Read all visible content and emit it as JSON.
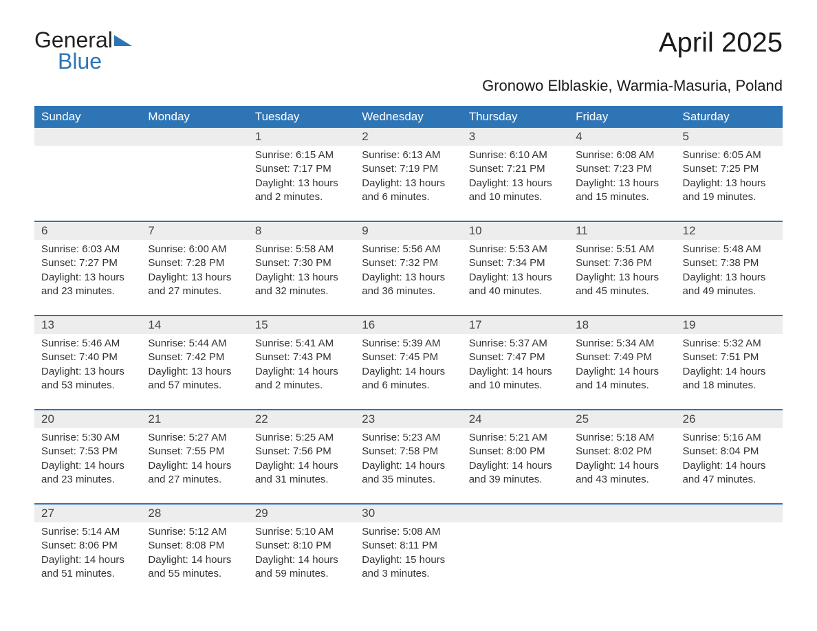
{
  "logo": {
    "word1": "General",
    "word2": "Blue"
  },
  "title": "April 2025",
  "subtitle": "Gronowo Elblaskie, Warmia-Masuria, Poland",
  "colors": {
    "header_bg": "#2e75b6",
    "header_text": "#ffffff",
    "daynum_bg": "#ededed",
    "row_border": "#2e75b6",
    "body_text": "#333333",
    "page_bg": "#ffffff",
    "logo_blue": "#2e75b6"
  },
  "typography": {
    "title_fontsize": 40,
    "subtitle_fontsize": 22,
    "header_fontsize": 17,
    "daynum_fontsize": 17,
    "cell_fontsize": 15
  },
  "layout": {
    "columns": 7,
    "weeks": 5,
    "cell_padding_bottom": 24
  },
  "weekdays": [
    "Sunday",
    "Monday",
    "Tuesday",
    "Wednesday",
    "Thursday",
    "Friday",
    "Saturday"
  ],
  "grid": [
    [
      {
        "day": "",
        "sunrise": "",
        "sunset": "",
        "daylight1": "",
        "daylight2": ""
      },
      {
        "day": "",
        "sunrise": "",
        "sunset": "",
        "daylight1": "",
        "daylight2": ""
      },
      {
        "day": "1",
        "sunrise": "Sunrise: 6:15 AM",
        "sunset": "Sunset: 7:17 PM",
        "daylight1": "Daylight: 13 hours",
        "daylight2": "and 2 minutes."
      },
      {
        "day": "2",
        "sunrise": "Sunrise: 6:13 AM",
        "sunset": "Sunset: 7:19 PM",
        "daylight1": "Daylight: 13 hours",
        "daylight2": "and 6 minutes."
      },
      {
        "day": "3",
        "sunrise": "Sunrise: 6:10 AM",
        "sunset": "Sunset: 7:21 PM",
        "daylight1": "Daylight: 13 hours",
        "daylight2": "and 10 minutes."
      },
      {
        "day": "4",
        "sunrise": "Sunrise: 6:08 AM",
        "sunset": "Sunset: 7:23 PM",
        "daylight1": "Daylight: 13 hours",
        "daylight2": "and 15 minutes."
      },
      {
        "day": "5",
        "sunrise": "Sunrise: 6:05 AM",
        "sunset": "Sunset: 7:25 PM",
        "daylight1": "Daylight: 13 hours",
        "daylight2": "and 19 minutes."
      }
    ],
    [
      {
        "day": "6",
        "sunrise": "Sunrise: 6:03 AM",
        "sunset": "Sunset: 7:27 PM",
        "daylight1": "Daylight: 13 hours",
        "daylight2": "and 23 minutes."
      },
      {
        "day": "7",
        "sunrise": "Sunrise: 6:00 AM",
        "sunset": "Sunset: 7:28 PM",
        "daylight1": "Daylight: 13 hours",
        "daylight2": "and 27 minutes."
      },
      {
        "day": "8",
        "sunrise": "Sunrise: 5:58 AM",
        "sunset": "Sunset: 7:30 PM",
        "daylight1": "Daylight: 13 hours",
        "daylight2": "and 32 minutes."
      },
      {
        "day": "9",
        "sunrise": "Sunrise: 5:56 AM",
        "sunset": "Sunset: 7:32 PM",
        "daylight1": "Daylight: 13 hours",
        "daylight2": "and 36 minutes."
      },
      {
        "day": "10",
        "sunrise": "Sunrise: 5:53 AM",
        "sunset": "Sunset: 7:34 PM",
        "daylight1": "Daylight: 13 hours",
        "daylight2": "and 40 minutes."
      },
      {
        "day": "11",
        "sunrise": "Sunrise: 5:51 AM",
        "sunset": "Sunset: 7:36 PM",
        "daylight1": "Daylight: 13 hours",
        "daylight2": "and 45 minutes."
      },
      {
        "day": "12",
        "sunrise": "Sunrise: 5:48 AM",
        "sunset": "Sunset: 7:38 PM",
        "daylight1": "Daylight: 13 hours",
        "daylight2": "and 49 minutes."
      }
    ],
    [
      {
        "day": "13",
        "sunrise": "Sunrise: 5:46 AM",
        "sunset": "Sunset: 7:40 PM",
        "daylight1": "Daylight: 13 hours",
        "daylight2": "and 53 minutes."
      },
      {
        "day": "14",
        "sunrise": "Sunrise: 5:44 AM",
        "sunset": "Sunset: 7:42 PM",
        "daylight1": "Daylight: 13 hours",
        "daylight2": "and 57 minutes."
      },
      {
        "day": "15",
        "sunrise": "Sunrise: 5:41 AM",
        "sunset": "Sunset: 7:43 PM",
        "daylight1": "Daylight: 14 hours",
        "daylight2": "and 2 minutes."
      },
      {
        "day": "16",
        "sunrise": "Sunrise: 5:39 AM",
        "sunset": "Sunset: 7:45 PM",
        "daylight1": "Daylight: 14 hours",
        "daylight2": "and 6 minutes."
      },
      {
        "day": "17",
        "sunrise": "Sunrise: 5:37 AM",
        "sunset": "Sunset: 7:47 PM",
        "daylight1": "Daylight: 14 hours",
        "daylight2": "and 10 minutes."
      },
      {
        "day": "18",
        "sunrise": "Sunrise: 5:34 AM",
        "sunset": "Sunset: 7:49 PM",
        "daylight1": "Daylight: 14 hours",
        "daylight2": "and 14 minutes."
      },
      {
        "day": "19",
        "sunrise": "Sunrise: 5:32 AM",
        "sunset": "Sunset: 7:51 PM",
        "daylight1": "Daylight: 14 hours",
        "daylight2": "and 18 minutes."
      }
    ],
    [
      {
        "day": "20",
        "sunrise": "Sunrise: 5:30 AM",
        "sunset": "Sunset: 7:53 PM",
        "daylight1": "Daylight: 14 hours",
        "daylight2": "and 23 minutes."
      },
      {
        "day": "21",
        "sunrise": "Sunrise: 5:27 AM",
        "sunset": "Sunset: 7:55 PM",
        "daylight1": "Daylight: 14 hours",
        "daylight2": "and 27 minutes."
      },
      {
        "day": "22",
        "sunrise": "Sunrise: 5:25 AM",
        "sunset": "Sunset: 7:56 PM",
        "daylight1": "Daylight: 14 hours",
        "daylight2": "and 31 minutes."
      },
      {
        "day": "23",
        "sunrise": "Sunrise: 5:23 AM",
        "sunset": "Sunset: 7:58 PM",
        "daylight1": "Daylight: 14 hours",
        "daylight2": "and 35 minutes."
      },
      {
        "day": "24",
        "sunrise": "Sunrise: 5:21 AM",
        "sunset": "Sunset: 8:00 PM",
        "daylight1": "Daylight: 14 hours",
        "daylight2": "and 39 minutes."
      },
      {
        "day": "25",
        "sunrise": "Sunrise: 5:18 AM",
        "sunset": "Sunset: 8:02 PM",
        "daylight1": "Daylight: 14 hours",
        "daylight2": "and 43 minutes."
      },
      {
        "day": "26",
        "sunrise": "Sunrise: 5:16 AM",
        "sunset": "Sunset: 8:04 PM",
        "daylight1": "Daylight: 14 hours",
        "daylight2": "and 47 minutes."
      }
    ],
    [
      {
        "day": "27",
        "sunrise": "Sunrise: 5:14 AM",
        "sunset": "Sunset: 8:06 PM",
        "daylight1": "Daylight: 14 hours",
        "daylight2": "and 51 minutes."
      },
      {
        "day": "28",
        "sunrise": "Sunrise: 5:12 AM",
        "sunset": "Sunset: 8:08 PM",
        "daylight1": "Daylight: 14 hours",
        "daylight2": "and 55 minutes."
      },
      {
        "day": "29",
        "sunrise": "Sunrise: 5:10 AM",
        "sunset": "Sunset: 8:10 PM",
        "daylight1": "Daylight: 14 hours",
        "daylight2": "and 59 minutes."
      },
      {
        "day": "30",
        "sunrise": "Sunrise: 5:08 AM",
        "sunset": "Sunset: 8:11 PM",
        "daylight1": "Daylight: 15 hours",
        "daylight2": "and 3 minutes."
      },
      {
        "day": "",
        "sunrise": "",
        "sunset": "",
        "daylight1": "",
        "daylight2": ""
      },
      {
        "day": "",
        "sunrise": "",
        "sunset": "",
        "daylight1": "",
        "daylight2": ""
      },
      {
        "day": "",
        "sunrise": "",
        "sunset": "",
        "daylight1": "",
        "daylight2": ""
      }
    ]
  ]
}
